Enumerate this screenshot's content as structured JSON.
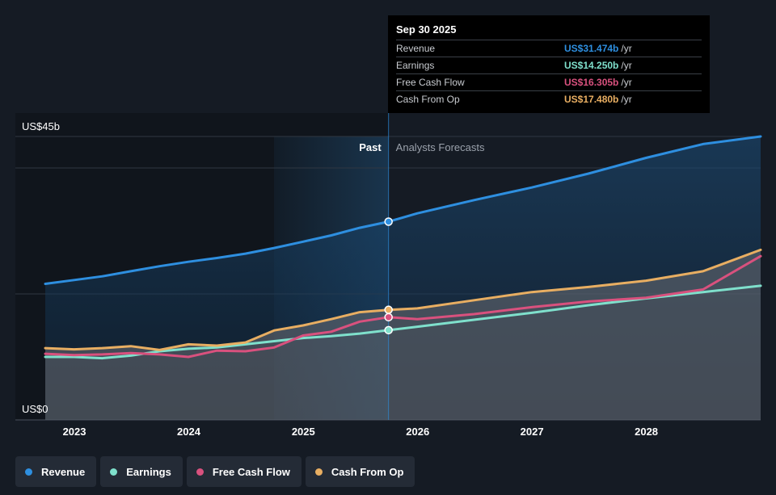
{
  "chart_data": {
    "type": "area",
    "x_type": "date",
    "xlim": [
      "2022-09-30",
      "2028-12-31"
    ],
    "ylim": [
      0,
      45
    ],
    "y_unit": "US$ billions",
    "ytick_labels": [
      "US$45b",
      "US$0"
    ],
    "yticks": [
      45,
      0
    ],
    "xtick_labels": [
      "2023",
      "2024",
      "2025",
      "2026",
      "2027",
      "2028"
    ],
    "xticks": [
      "2023-01-01",
      "2024-01-01",
      "2025-01-01",
      "2026-01-01",
      "2027-01-01",
      "2028-01-01"
    ],
    "divider_date": "2025-09-30",
    "past_label": "Past",
    "forecast_label": "Analysts Forecasts",
    "series": [
      {
        "name": "Revenue",
        "color": "#2e8fe0",
        "points": [
          [
            "2022-09-30",
            21.6
          ],
          [
            "2022-12-31",
            22.2
          ],
          [
            "2023-03-31",
            22.8
          ],
          [
            "2023-06-30",
            23.6
          ],
          [
            "2023-09-30",
            24.4
          ],
          [
            "2023-12-31",
            25.1
          ],
          [
            "2024-03-31",
            25.7
          ],
          [
            "2024-06-30",
            26.4
          ],
          [
            "2024-09-30",
            27.3
          ],
          [
            "2024-12-31",
            28.3
          ],
          [
            "2025-03-31",
            29.3
          ],
          [
            "2025-06-30",
            30.5
          ],
          [
            "2025-09-30",
            31.474
          ],
          [
            "2025-12-31",
            32.8
          ],
          [
            "2026-06-30",
            34.9
          ],
          [
            "2026-12-31",
            36.9
          ],
          [
            "2027-06-30",
            39.1
          ],
          [
            "2027-12-31",
            41.6
          ],
          [
            "2028-06-30",
            43.8
          ],
          [
            "2028-12-31",
            45.0
          ]
        ]
      },
      {
        "name": "Earnings",
        "color": "#7fe0cc",
        "points": [
          [
            "2022-09-30",
            10.0
          ],
          [
            "2022-12-31",
            10.0
          ],
          [
            "2023-03-31",
            9.8
          ],
          [
            "2023-06-30",
            10.2
          ],
          [
            "2023-09-30",
            10.9
          ],
          [
            "2023-12-31",
            11.3
          ],
          [
            "2024-03-31",
            11.5
          ],
          [
            "2024-06-30",
            12.0
          ],
          [
            "2024-09-30",
            12.5
          ],
          [
            "2024-12-31",
            13.0
          ],
          [
            "2025-03-31",
            13.3
          ],
          [
            "2025-06-30",
            13.7
          ],
          [
            "2025-09-30",
            14.25
          ],
          [
            "2025-12-31",
            14.8
          ],
          [
            "2026-06-30",
            15.9
          ],
          [
            "2026-12-31",
            17.0
          ],
          [
            "2027-06-30",
            18.2
          ],
          [
            "2027-12-31",
            19.3
          ],
          [
            "2028-06-30",
            20.3
          ],
          [
            "2028-12-31",
            21.3
          ]
        ]
      },
      {
        "name": "Free Cash Flow",
        "color": "#d9517e",
        "points": [
          [
            "2022-09-30",
            10.5
          ],
          [
            "2022-12-31",
            10.3
          ],
          [
            "2023-03-31",
            10.4
          ],
          [
            "2023-06-30",
            10.6
          ],
          [
            "2023-09-30",
            10.4
          ],
          [
            "2023-12-31",
            10.0
          ],
          [
            "2024-03-31",
            11.0
          ],
          [
            "2024-06-30",
            10.9
          ],
          [
            "2024-09-30",
            11.5
          ],
          [
            "2024-12-31",
            13.4
          ],
          [
            "2025-03-31",
            14.0
          ],
          [
            "2025-06-30",
            15.6
          ],
          [
            "2025-09-30",
            16.305
          ],
          [
            "2025-12-31",
            16.0
          ],
          [
            "2026-06-30",
            16.8
          ],
          [
            "2026-12-31",
            17.9
          ],
          [
            "2027-06-30",
            18.8
          ],
          [
            "2027-12-31",
            19.4
          ],
          [
            "2028-06-30",
            20.7
          ],
          [
            "2028-12-31",
            26.0
          ]
        ]
      },
      {
        "name": "Cash From Op",
        "color": "#e8ae62",
        "points": [
          [
            "2022-09-30",
            11.4
          ],
          [
            "2022-12-31",
            11.2
          ],
          [
            "2023-03-31",
            11.4
          ],
          [
            "2023-06-30",
            11.7
          ],
          [
            "2023-09-30",
            11.1
          ],
          [
            "2023-12-31",
            12.0
          ],
          [
            "2024-03-31",
            11.8
          ],
          [
            "2024-06-30",
            12.3
          ],
          [
            "2024-09-30",
            14.2
          ],
          [
            "2024-12-31",
            15.0
          ],
          [
            "2025-03-31",
            16.0
          ],
          [
            "2025-06-30",
            17.1
          ],
          [
            "2025-09-30",
            17.48
          ],
          [
            "2025-12-31",
            17.7
          ],
          [
            "2026-06-30",
            19.0
          ],
          [
            "2026-12-31",
            20.3
          ],
          [
            "2027-06-30",
            21.1
          ],
          [
            "2027-12-31",
            22.1
          ],
          [
            "2028-06-30",
            23.6
          ],
          [
            "2028-12-31",
            27.0
          ]
        ]
      }
    ]
  },
  "tooltip": {
    "date": "Sep 30 2025",
    "rows": [
      {
        "label": "Revenue",
        "value": "US$31.474b",
        "unit": "/yr",
        "color": "#2e8fe0"
      },
      {
        "label": "Earnings",
        "value": "US$14.250b",
        "unit": "/yr",
        "color": "#7fe0cc"
      },
      {
        "label": "Free Cash Flow",
        "value": "US$16.305b",
        "unit": "/yr",
        "color": "#d9517e"
      },
      {
        "label": "Cash From Op",
        "value": "US$17.480b",
        "unit": "/yr",
        "color": "#e8ae62"
      }
    ]
  },
  "legend": [
    {
      "label": "Revenue",
      "color": "#2e8fe0"
    },
    {
      "label": "Earnings",
      "color": "#7fe0cc"
    },
    {
      "label": "Free Cash Flow",
      "color": "#d9517e"
    },
    {
      "label": "Cash From Op",
      "color": "#e8ae62"
    }
  ]
}
